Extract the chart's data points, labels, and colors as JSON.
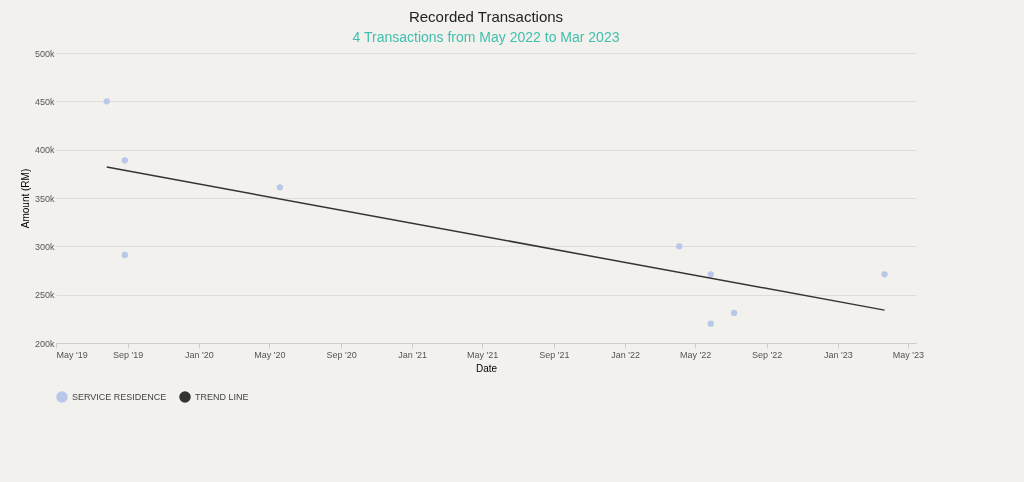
{
  "chart_data": {
    "type": "scatter",
    "title": "Recorded Transactions",
    "subtitle": "4 Transactions from May 2022 to Mar 2023",
    "xlabel": "Date",
    "ylabel": "Amount (RM)",
    "series": [
      {
        "name": "SERVICE RESIDENCE",
        "type": "scatter",
        "color": "#b8c8e8",
        "x": [
          "2019-07-27",
          "2019-08-27",
          "2019-08-27",
          "2020-05-19",
          "2022-04-04",
          "2022-05-28",
          "2022-05-28",
          "2022-07-07",
          "2023-03-22"
        ],
        "values": [
          450000,
          389000,
          291000,
          361000,
          300000,
          271000,
          220000,
          231000,
          271000
        ]
      },
      {
        "name": "TREND LINE",
        "type": "line",
        "color": "#333333",
        "x": [
          "2019-07-27",
          "2023-03-22"
        ],
        "values": [
          382000,
          234000
        ]
      }
    ],
    "xlim": [
      "2019-05",
      "2023-05-15"
    ],
    "xticks": [
      {
        "value": "2019-05",
        "label": "May '19"
      },
      {
        "value": "2019-09",
        "label": "Sep '19"
      },
      {
        "value": "2020-01",
        "label": "Jan '20"
      },
      {
        "value": "2020-05",
        "label": "May '20"
      },
      {
        "value": "2020-09",
        "label": "Sep '20"
      },
      {
        "value": "2021-01",
        "label": "Jan '21"
      },
      {
        "value": "2021-05",
        "label": "May '21"
      },
      {
        "value": "2021-09",
        "label": "Sep '21"
      },
      {
        "value": "2022-01",
        "label": "Jan '22"
      },
      {
        "value": "2022-05",
        "label": "May '22"
      },
      {
        "value": "2022-09",
        "label": "Sep '22"
      },
      {
        "value": "2023-01",
        "label": "Jan '23"
      },
      {
        "value": "2023-05",
        "label": "May '23"
      }
    ],
    "ylim": [
      200000,
      500000
    ],
    "yticks": [
      {
        "value": 200000,
        "label": "200k"
      },
      {
        "value": 250000,
        "label": "250k"
      },
      {
        "value": 300000,
        "label": "300k"
      },
      {
        "value": 350000,
        "label": "350k"
      },
      {
        "value": 400000,
        "label": "400k"
      },
      {
        "value": 450000,
        "label": "450k"
      },
      {
        "value": 500000,
        "label": "500k"
      }
    ],
    "grid": "y",
    "legend": "bottom"
  }
}
